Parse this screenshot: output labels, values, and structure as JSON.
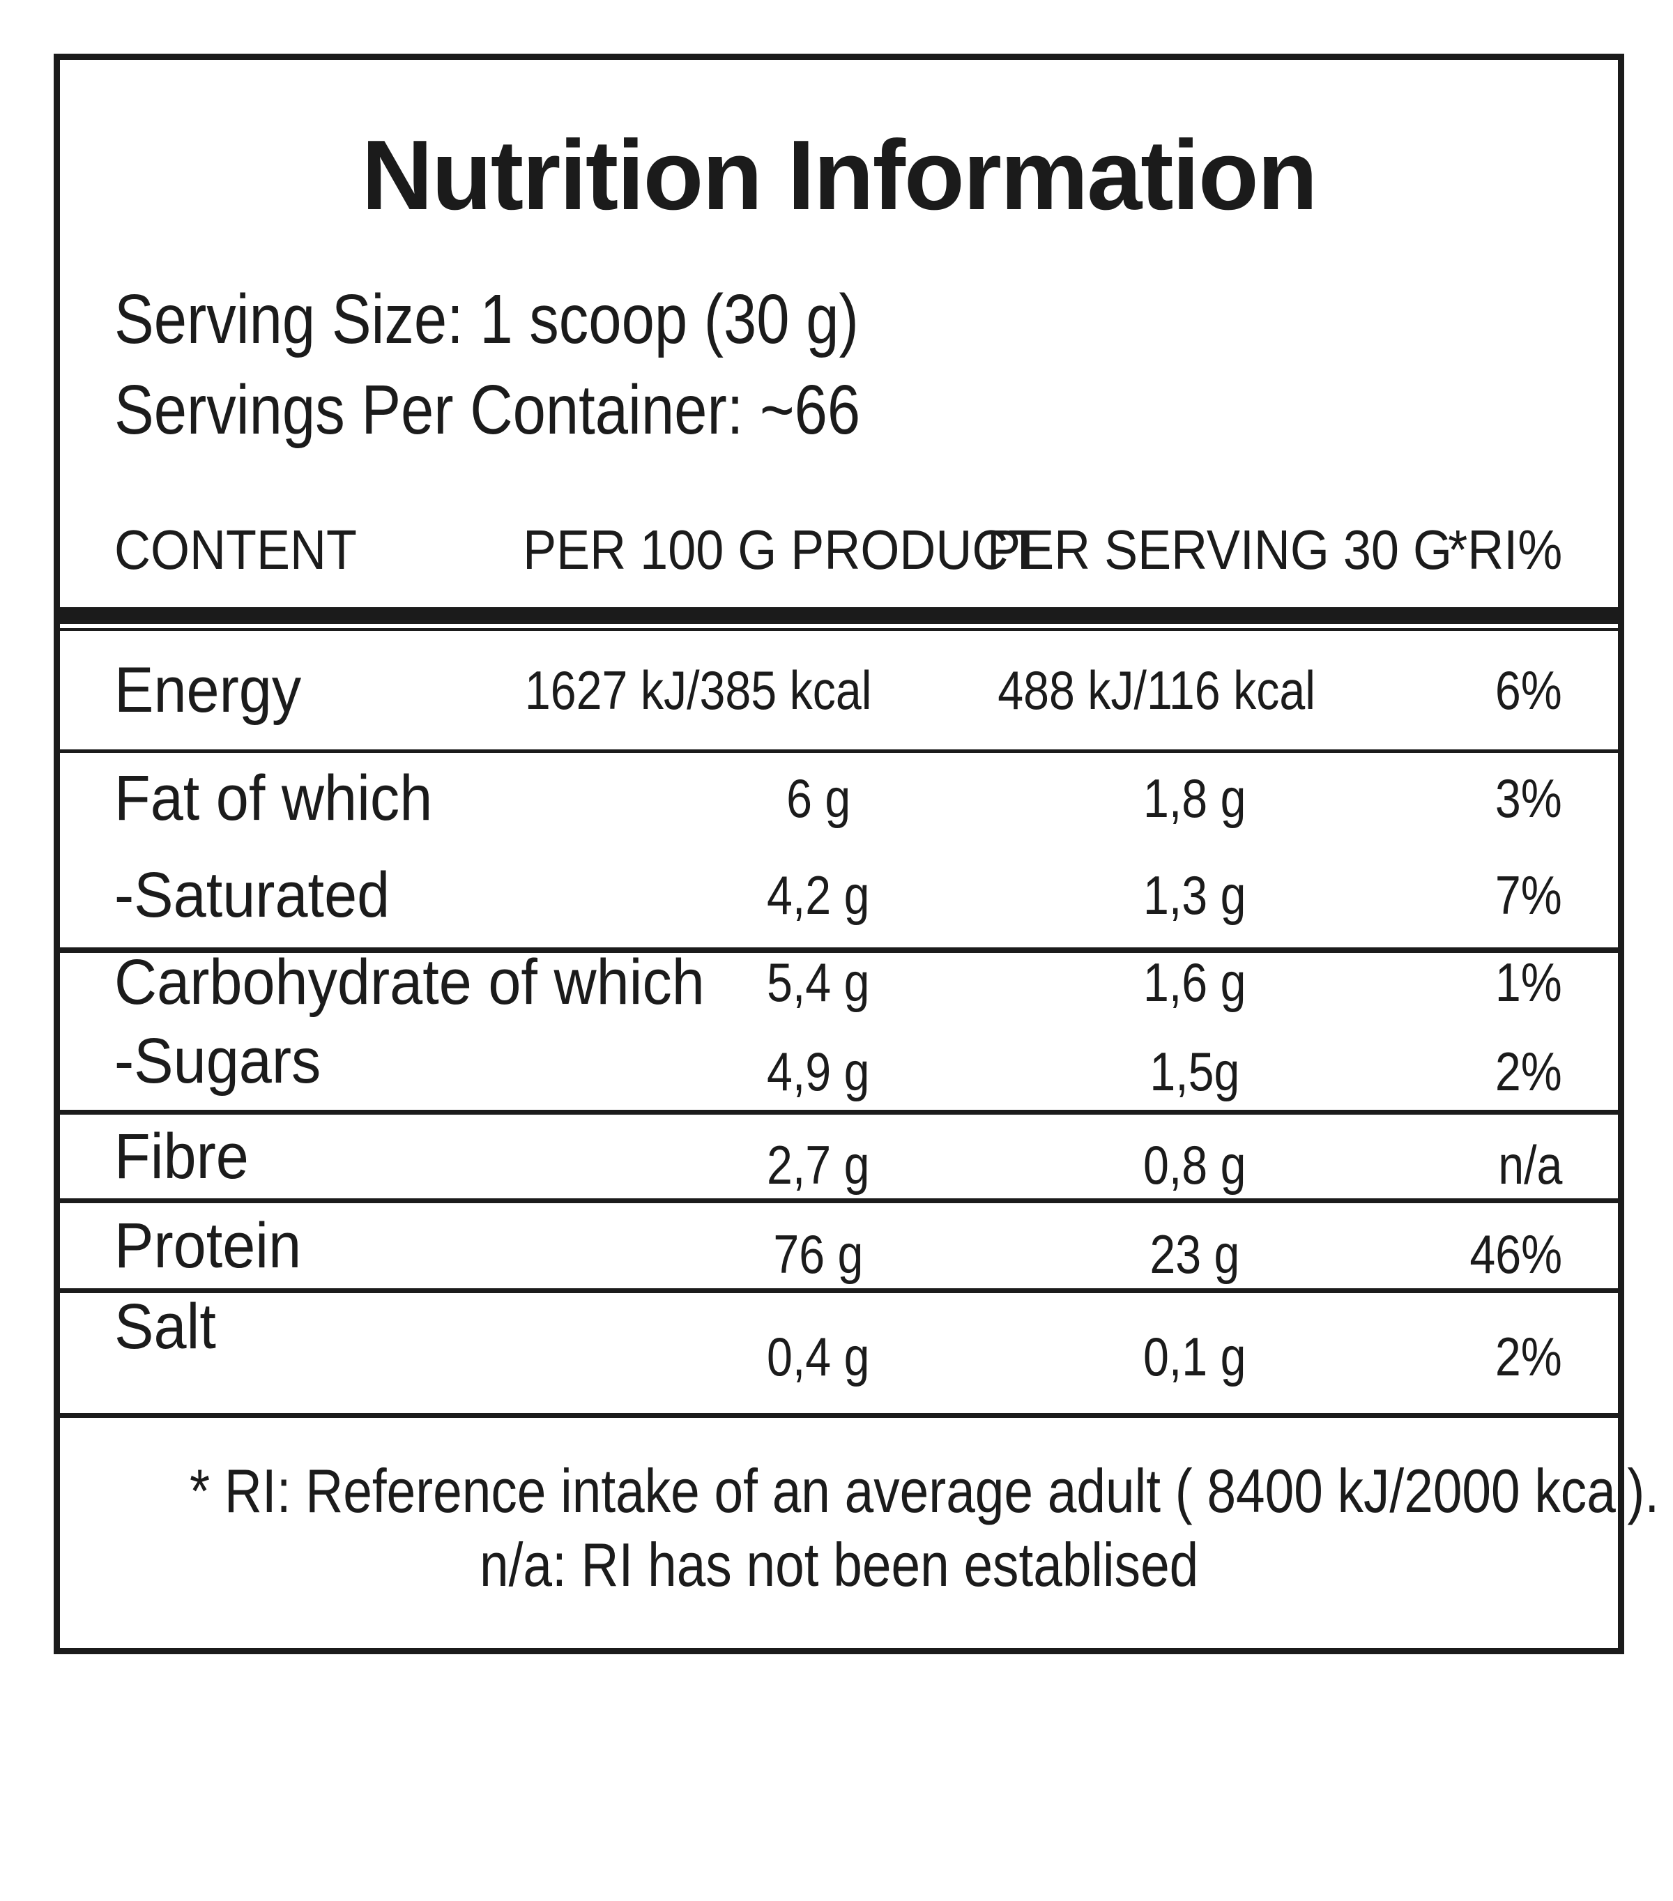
{
  "label": {
    "title": "Nutrition Information",
    "serving": {
      "size_line": "Serving Size: 1 scoop (30 g)",
      "container_line": "Servings Per Container: ~66"
    },
    "table": {
      "headers": {
        "content": "CONTENT",
        "per_100g": "PER 100 G PRODUCT",
        "per_serving": "PER SERVING 30 G",
        "ri": "*RI%"
      },
      "rows": [
        {
          "name": "Energy",
          "per_100g": "1627 kJ/385 kcal",
          "per_serving": "488 kJ/116 kcal",
          "ri": "6%"
        },
        {
          "name": "Fat of which",
          "per_100g": "6 g",
          "per_serving": "1,8 g",
          "ri": "3%"
        },
        {
          "name": "-Saturated",
          "per_100g": "4,2 g",
          "per_serving": "1,3 g",
          "ri": "7%"
        },
        {
          "name": "Carbohydrate of which",
          "per_100g": "5,4 g",
          "per_serving": "1,6 g",
          "ri": "1%"
        },
        {
          "name": "-Sugars",
          "per_100g": "4,9 g",
          "per_serving": "1,5g",
          "ri": "2%"
        },
        {
          "name": "Fibre",
          "per_100g": "2,7 g",
          "per_serving": "0,8 g",
          "ri": "n/a"
        },
        {
          "name": "Protein",
          "per_100g": "76 g",
          "per_serving": "23 g",
          "ri": "46%"
        },
        {
          "name": "Salt",
          "per_100g": "0,4 g",
          "per_serving": "0,1 g",
          "ri": "2%"
        }
      ]
    },
    "footnotes": {
      "line1": "* RI: Reference intake of an average adult ( 8400 kJ/2000 kcal).",
      "line2": "n/a: RI has not been establised"
    },
    "colors": {
      "ink": "#1b1b1b",
      "background": "#ffffff"
    }
  }
}
